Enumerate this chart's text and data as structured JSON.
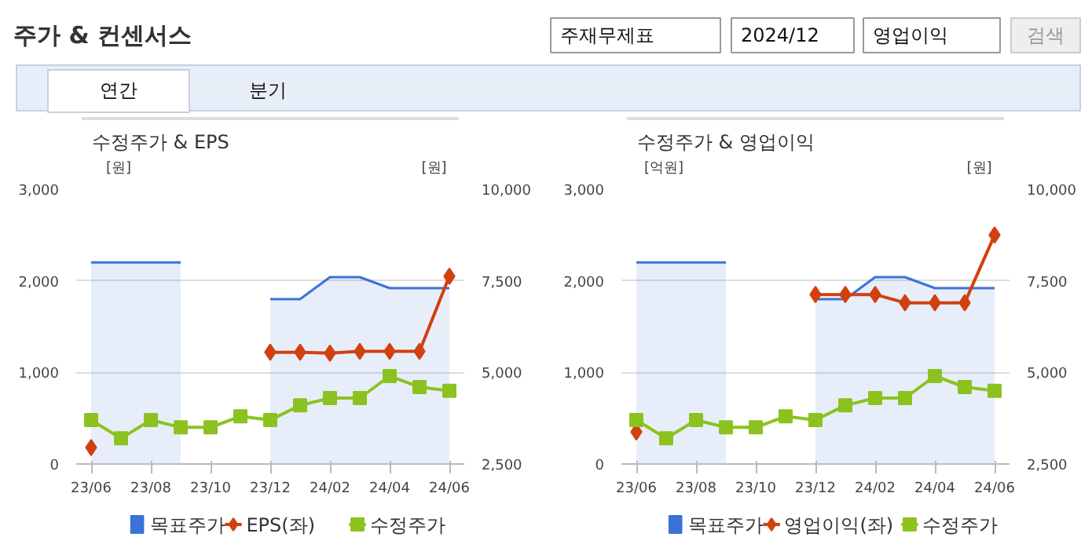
{
  "chart_data": [
    {
      "type": "other",
      "title": "주가 & 컨센서스",
      "annotations": [
        "주재무제표",
        "2024/12",
        "영업이익",
        "검색",
        "연간",
        "분기"
      ]
    },
    {
      "type": "line",
      "title": "수정주가 & EPS",
      "ylabel": "[원]",
      "y2label": "[원]",
      "categories": [
        "23/06",
        null,
        "23/08",
        null,
        "23/10",
        null,
        "23/12",
        null,
        "24/02",
        null,
        "24/04",
        null,
        "24/06"
      ],
      "ylim": [
        0,
        3000
      ],
      "yticks": [
        0,
        {
          "value": 1000,
          "label": "1,000"
        },
        {
          "value": 2000,
          "label": "2,000"
        },
        {
          "value": 3000,
          "label": "3,000"
        }
      ],
      "y2lim": [
        2500,
        10000
      ],
      "y2ticks": [
        {
          "value": 2500,
          "label": "2,500"
        },
        {
          "value": 5000,
          "label": "5,000"
        },
        {
          "value": 7500,
          "label": "7,500"
        },
        {
          "value": 10000,
          "label": "10,000"
        }
      ],
      "grid": "y",
      "legend": "bottom",
      "series": [
        {
          "name": "목표주가",
          "type": "area",
          "axis": "y2",
          "color": "#3a72d8",
          "values": [
            8000,
            8000,
            8000,
            8000,
            null,
            null,
            7000,
            7000,
            7600,
            7600,
            7300,
            7300,
            7300
          ]
        },
        {
          "name": "EPS(좌)",
          "type": "line",
          "marker": "diamond",
          "color": "#d2400f",
          "values": [
            180,
            null,
            null,
            null,
            null,
            null,
            1220,
            1220,
            1210,
            1230,
            1230,
            1230,
            2050
          ]
        },
        {
          "name": "수정주가",
          "type": "line",
          "axis": "y2",
          "marker": "square",
          "color": "#8cc21f",
          "values": [
            3700,
            3200,
            3700,
            3500,
            3500,
            3800,
            3700,
            4100,
            4300,
            4300,
            4900,
            4600,
            4500
          ]
        }
      ]
    },
    {
      "type": "line",
      "title": "수정주가 & 영업이익",
      "ylabel": "[억원]",
      "y2label": "[원]",
      "categories": [
        "23/06",
        null,
        "23/08",
        null,
        "23/10",
        null,
        "23/12",
        null,
        "24/02",
        null,
        "24/04",
        null,
        "24/06"
      ],
      "ylim": [
        0,
        3000
      ],
      "yticks": [
        0,
        {
          "value": 1000,
          "label": "1,000"
        },
        {
          "value": 2000,
          "label": "2,000"
        },
        {
          "value": 3000,
          "label": "3,000"
        }
      ],
      "y2lim": [
        2500,
        10000
      ],
      "y2ticks": [
        {
          "value": 2500,
          "label": "2,500"
        },
        {
          "value": 5000,
          "label": "5,000"
        },
        {
          "value": 7500,
          "label": "7,500"
        },
        {
          "value": 10000,
          "label": "10,000"
        }
      ],
      "grid": "y",
      "legend": "bottom",
      "series": [
        {
          "name": "목표주가",
          "type": "area",
          "axis": "y2",
          "color": "#3a72d8",
          "values": [
            8000,
            8000,
            8000,
            8000,
            null,
            null,
            7000,
            7000,
            7600,
            7600,
            7300,
            7300,
            7300
          ]
        },
        {
          "name": "영업이익(좌)",
          "type": "line",
          "marker": "diamond",
          "color": "#d2400f",
          "values": [
            350,
            null,
            null,
            null,
            null,
            null,
            1850,
            1850,
            1850,
            1760,
            1760,
            1760,
            2500
          ]
        },
        {
          "name": "수정주가",
          "type": "line",
          "axis": "y2",
          "marker": "square",
          "color": "#8cc21f",
          "values": [
            3700,
            3200,
            3700,
            3500,
            3500,
            3800,
            3700,
            4100,
            4300,
            4300,
            4900,
            4600,
            4500
          ]
        }
      ]
    }
  ]
}
